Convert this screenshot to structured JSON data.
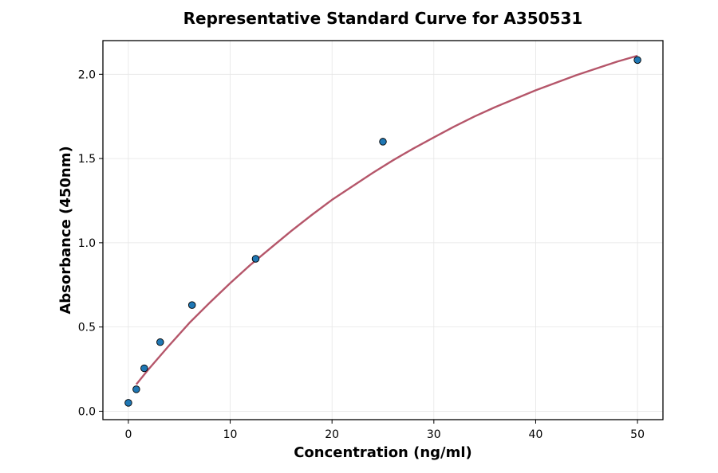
{
  "chart_data": {
    "type": "scatter",
    "title": "Representative Standard Curve for A350531",
    "xlabel": "Concentration (ng/ml)",
    "ylabel": "Absorbance (450nm)",
    "xlim": [
      -2.5,
      52.5
    ],
    "ylim": [
      -0.05,
      2.2
    ],
    "xticks": [
      0,
      10,
      20,
      30,
      40,
      50
    ],
    "xtick_labels": [
      "0",
      "10",
      "20",
      "30",
      "40",
      "50"
    ],
    "yticks": [
      0.0,
      0.5,
      1.0,
      1.5,
      2.0
    ],
    "ytick_labels": [
      "0.0",
      "0.5",
      "1.0",
      "1.5",
      "2.0"
    ],
    "grid": true,
    "legend": "none",
    "points": {
      "x": [
        0,
        0.78,
        1.56,
        3.125,
        6.25,
        12.5,
        25,
        50
      ],
      "y": [
        0.05,
        0.13,
        0.255,
        0.41,
        0.63,
        0.905,
        1.6,
        2.085
      ]
    },
    "fit_curve": {
      "x": [
        0.78,
        2,
        4,
        6,
        8,
        10,
        12,
        14,
        16,
        18,
        20,
        22,
        24,
        26,
        28,
        30,
        32,
        34,
        36,
        38,
        40,
        42,
        44,
        46,
        48,
        50
      ],
      "y": [
        0.16,
        0.25,
        0.39,
        0.525,
        0.645,
        0.76,
        0.87,
        0.97,
        1.07,
        1.165,
        1.255,
        1.335,
        1.415,
        1.49,
        1.56,
        1.625,
        1.69,
        1.75,
        1.805,
        1.855,
        1.905,
        1.95,
        1.995,
        2.035,
        2.075,
        2.11
      ]
    },
    "colors": {
      "point_fill": "#1f77b4",
      "point_edge": "#000000",
      "fit_line": "#b5566a",
      "grid": "#e6e6e6",
      "axes": "#000000"
    }
  }
}
